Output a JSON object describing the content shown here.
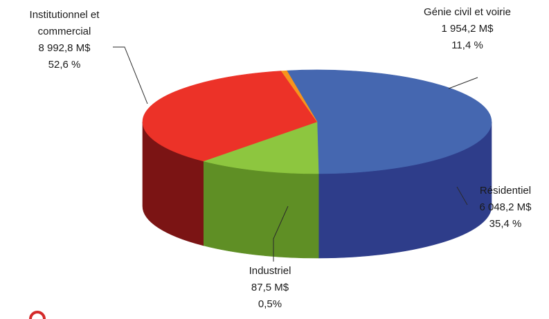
{
  "chart_data": {
    "type": "pie",
    "slices": [
      {
        "label_lines": [
          "Institutionnel et",
          "commercial"
        ],
        "value_text": "8 992,8 M$",
        "percent_text": "52,6 %",
        "value": 8992.8,
        "percent": 52.6,
        "color": "#4567b0",
        "side_color": "#2e3d8a"
      },
      {
        "label_lines": [
          "Génie civil et voirie"
        ],
        "value_text": "1 954,2 M$",
        "percent_text": "11,4 %",
        "value": 1954.2,
        "percent": 11.4,
        "color": "#8dc63f",
        "side_color": "#5f8f25"
      },
      {
        "label_lines": [
          "Résidentiel"
        ],
        "value_text": "6 048,2 M$",
        "percent_text": "35,4 %",
        "value": 6048.2,
        "percent": 35.4,
        "color": "#ec3228",
        "side_color": "#7b1414"
      },
      {
        "label_lines": [
          "Industriel"
        ],
        "value_text": "87,5 M$",
        "percent_text": "0,5%",
        "value": 87.5,
        "percent": 0.5,
        "color": "#f7941d",
        "side_color": "#d8780f"
      }
    ]
  }
}
